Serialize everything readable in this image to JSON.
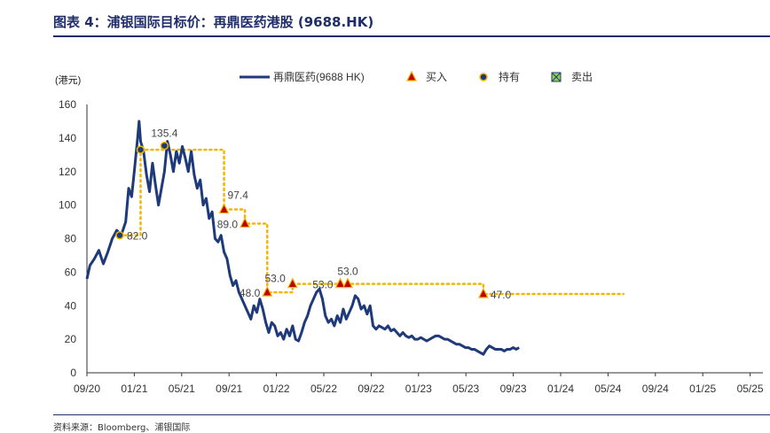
{
  "page": {
    "title": "图表 4：浦银国际目标价：再鼎医药港股 (9688.HK)",
    "source": "资料来源：Bloomberg、浦银国际"
  },
  "chart_data": {
    "type": "line",
    "ylabel": "(港元)",
    "ylim": [
      0,
      160
    ],
    "yticks": [
      0,
      20,
      40,
      60,
      80,
      100,
      120,
      140,
      160
    ],
    "xticks": [
      "09/20",
      "01/21",
      "05/21",
      "09/21",
      "01/22",
      "05/22",
      "09/22",
      "01/23",
      "05/23",
      "09/23",
      "01/24",
      "05/24",
      "09/24",
      "01/25",
      "05/25"
    ],
    "grid": false,
    "legend_position": "top",
    "legend": [
      {
        "label": "再鼎医药(9688 HK)",
        "kind": "line",
        "color": "#1f3a7a"
      },
      {
        "label": "买入",
        "kind": "triangle",
        "color": "#c00000",
        "fill": "#f4b400"
      },
      {
        "label": "持有",
        "kind": "circle",
        "color": "#1f3a7a",
        "fill": "#f4b400"
      },
      {
        "label": "卖出",
        "kind": "square-x",
        "color": "#1f3a7a",
        "fill": "#92d050"
      }
    ],
    "series": [
      {
        "name": "再鼎医药(9688 HK)",
        "color": "#1f3a7a",
        "points": [
          [
            0,
            56
          ],
          [
            0.2,
            64
          ],
          [
            0.5,
            68
          ],
          [
            0.8,
            73
          ],
          [
            1.1,
            65
          ],
          [
            1.4,
            72
          ],
          [
            1.7,
            80
          ],
          [
            2.0,
            85
          ],
          [
            2.3,
            82
          ],
          [
            2.6,
            90
          ],
          [
            2.8,
            110
          ],
          [
            3.0,
            105
          ],
          [
            3.2,
            122
          ],
          [
            3.4,
            140
          ],
          [
            3.5,
            150
          ],
          [
            3.6,
            138
          ],
          [
            3.8,
            132
          ],
          [
            4.0,
            118
          ],
          [
            4.2,
            108
          ],
          [
            4.4,
            125
          ],
          [
            4.6,
            112
          ],
          [
            4.8,
            100
          ],
          [
            5.0,
            110
          ],
          [
            5.2,
            120
          ],
          [
            5.4,
            138
          ],
          [
            5.6,
            130
          ],
          [
            5.8,
            120
          ],
          [
            6.0,
            132
          ],
          [
            6.2,
            125
          ],
          [
            6.4,
            135
          ],
          [
            6.6,
            128
          ],
          [
            6.8,
            120
          ],
          [
            7.0,
            132
          ],
          [
            7.2,
            118
          ],
          [
            7.4,
            110
          ],
          [
            7.6,
            115
          ],
          [
            7.8,
            100
          ],
          [
            8.0,
            104
          ],
          [
            8.2,
            92
          ],
          [
            8.4,
            96
          ],
          [
            8.6,
            80
          ],
          [
            8.8,
            78
          ],
          [
            9.0,
            82
          ],
          [
            9.2,
            72
          ],
          [
            9.4,
            68
          ],
          [
            9.6,
            58
          ],
          [
            9.8,
            52
          ],
          [
            10.0,
            55
          ],
          [
            10.2,
            48
          ],
          [
            10.4,
            44
          ],
          [
            10.6,
            40
          ],
          [
            10.8,
            36
          ],
          [
            11.0,
            32
          ],
          [
            11.2,
            40
          ],
          [
            11.4,
            36
          ],
          [
            11.6,
            44
          ],
          [
            11.8,
            38
          ],
          [
            12.0,
            30
          ],
          [
            12.2,
            24
          ],
          [
            12.4,
            30
          ],
          [
            12.6,
            28
          ],
          [
            12.8,
            22
          ],
          [
            13.0,
            24
          ],
          [
            13.2,
            20
          ],
          [
            13.4,
            26
          ],
          [
            13.6,
            22
          ],
          [
            13.8,
            28
          ],
          [
            14.0,
            20
          ],
          [
            14.2,
            19
          ],
          [
            14.4,
            24
          ],
          [
            14.6,
            30
          ],
          [
            14.8,
            34
          ],
          [
            15.0,
            40
          ],
          [
            15.2,
            44
          ],
          [
            15.4,
            48
          ],
          [
            15.6,
            50
          ],
          [
            15.8,
            44
          ],
          [
            16.0,
            34
          ],
          [
            16.2,
            30
          ],
          [
            16.4,
            32
          ],
          [
            16.6,
            28
          ],
          [
            16.8,
            34
          ],
          [
            17.0,
            30
          ],
          [
            17.2,
            38
          ],
          [
            17.4,
            32
          ],
          [
            17.6,
            36
          ],
          [
            17.8,
            40
          ],
          [
            18.0,
            46
          ],
          [
            18.2,
            44
          ],
          [
            18.4,
            38
          ],
          [
            18.6,
            40
          ],
          [
            18.8,
            35
          ],
          [
            19.0,
            40
          ],
          [
            19.2,
            28
          ],
          [
            19.4,
            26
          ],
          [
            19.6,
            28
          ],
          [
            19.8,
            27
          ],
          [
            20.0,
            26
          ],
          [
            20.2,
            28
          ],
          [
            20.4,
            25
          ],
          [
            20.6,
            26
          ],
          [
            20.8,
            24
          ],
          [
            21.0,
            22
          ],
          [
            21.2,
            24
          ],
          [
            21.4,
            22
          ],
          [
            21.6,
            21
          ],
          [
            21.8,
            22
          ],
          [
            22.0,
            20
          ],
          [
            22.2,
            20
          ],
          [
            22.4,
            21
          ],
          [
            22.6,
            20
          ],
          [
            22.8,
            19
          ],
          [
            23.0,
            20
          ],
          [
            23.2,
            21
          ],
          [
            23.4,
            22
          ],
          [
            23.6,
            22
          ],
          [
            23.8,
            21
          ],
          [
            24.0,
            20
          ],
          [
            24.2,
            20
          ],
          [
            24.4,
            19
          ],
          [
            24.6,
            18
          ],
          [
            24.8,
            17
          ],
          [
            25.0,
            17
          ],
          [
            25.2,
            16
          ],
          [
            25.4,
            15
          ],
          [
            25.6,
            15
          ],
          [
            25.8,
            14
          ],
          [
            26.0,
            14
          ],
          [
            26.2,
            13
          ],
          [
            26.4,
            12
          ],
          [
            26.6,
            11
          ],
          [
            26.8,
            14
          ],
          [
            27.0,
            16
          ],
          [
            27.2,
            15
          ],
          [
            27.4,
            14
          ],
          [
            27.6,
            14
          ],
          [
            27.8,
            14
          ],
          [
            28.0,
            13
          ],
          [
            28.2,
            14
          ],
          [
            28.4,
            14
          ],
          [
            28.6,
            15
          ],
          [
            28.8,
            14
          ],
          [
            29.0,
            15
          ]
        ]
      }
    ],
    "target_price": {
      "color": "#f4b400",
      "points": [
        [
          2.2,
          82
        ],
        [
          3.6,
          82
        ],
        [
          3.6,
          133
        ],
        [
          9.2,
          133
        ],
        [
          9.2,
          97.4
        ],
        [
          10.6,
          97.4
        ],
        [
          10.6,
          89
        ],
        [
          12.1,
          89
        ],
        [
          12.1,
          48
        ],
        [
          13.8,
          48
        ],
        [
          13.8,
          53
        ],
        [
          17.0,
          53
        ],
        [
          17.0,
          53
        ],
        [
          26.6,
          53
        ],
        [
          26.6,
          47
        ],
        [
          36.0,
          47
        ]
      ]
    },
    "markers": [
      {
        "kind": "circle",
        "x": 2.2,
        "y": 82,
        "label": "82.0",
        "label_pos": "right"
      },
      {
        "kind": "circle",
        "x": 3.6,
        "y": 133,
        "label": "",
        "label_pos": "none"
      },
      {
        "kind": "circle",
        "x": 5.2,
        "y": 135.4,
        "label": "135.4",
        "label_pos": "above"
      },
      {
        "kind": "triangle",
        "x": 9.2,
        "y": 97.4,
        "label": "97.4",
        "label_pos": "above-right"
      },
      {
        "kind": "triangle",
        "x": 10.6,
        "y": 89,
        "label": "89.0",
        "label_pos": "left"
      },
      {
        "kind": "triangle",
        "x": 12.1,
        "y": 48,
        "label": "48.0",
        "label_pos": "left"
      },
      {
        "kind": "triangle",
        "x": 13.8,
        "y": 53,
        "label": "53.0",
        "label_pos": "left-above"
      },
      {
        "kind": "triangle",
        "x": 17.0,
        "y": 53,
        "label": "53.0",
        "label_pos": "left"
      },
      {
        "kind": "triangle",
        "x": 17.5,
        "y": 53,
        "label": "53.0",
        "label_pos": "above"
      },
      {
        "kind": "triangle",
        "x": 26.6,
        "y": 47,
        "label": "47.0",
        "label_pos": "right"
      }
    ]
  }
}
